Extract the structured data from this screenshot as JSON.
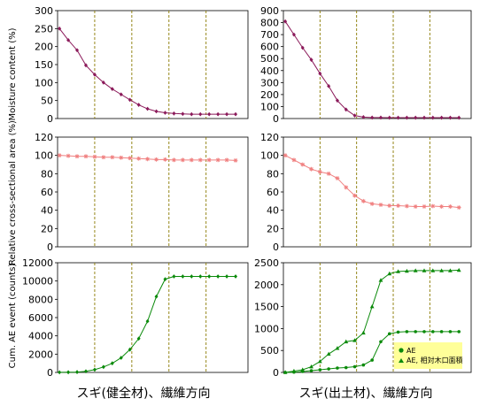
{
  "colors": {
    "moisture": "#8b1a5a",
    "area": "#f08080",
    "ae": "#0a8a0a",
    "grid": "#8a7a00",
    "legend_bg": "#ffff99"
  },
  "captions": [
    "スギ(健全材)、繊維方向",
    "スギ(出土材)、繊維方向"
  ],
  "row_labels": [
    "Moisture content (%)",
    "Relative cross-sectional area (%)",
    "Cum. AE event (counts)"
  ],
  "legend": [
    "AE",
    "AE, 相対木口面積"
  ],
  "chart_data": [
    {
      "panel": "left-top",
      "type": "line",
      "ylabel": "Moisture content (%)",
      "ylim": [
        0,
        300
      ],
      "yticks": [
        "0",
        "50",
        "100",
        "150",
        "200",
        "250",
        "300"
      ],
      "x": [
        0,
        1,
        2,
        3,
        4,
        5,
        6,
        7,
        8,
        9,
        10,
        11,
        12,
        13,
        14,
        15,
        16,
        17,
        18,
        19,
        20
      ],
      "series": [
        {
          "values": [
            250,
            218,
            190,
            148,
            122,
            100,
            82,
            67,
            52,
            38,
            27,
            20,
            16,
            14,
            13,
            12,
            12,
            12,
            12,
            12,
            12
          ]
        }
      ]
    },
    {
      "panel": "right-top",
      "type": "line",
      "ylim": [
        0,
        900
      ],
      "yticks": [
        "0",
        "100",
        "200",
        "300",
        "400",
        "500",
        "600",
        "700",
        "800",
        "900"
      ],
      "x": [
        0,
        1,
        2,
        3,
        4,
        5,
        6,
        7,
        8,
        9,
        10,
        11,
        12,
        13,
        14,
        15,
        16,
        17,
        18,
        19,
        20
      ],
      "series": [
        {
          "values": [
            810,
            700,
            590,
            490,
            375,
            270,
            150,
            75,
            25,
            12,
            8,
            8,
            7,
            7,
            7,
            7,
            7,
            7,
            7,
            7,
            7
          ]
        }
      ]
    },
    {
      "panel": "left-middle",
      "type": "line",
      "ylabel": "Relative cross-sectional area (%)",
      "ylim": [
        0,
        120
      ],
      "yticks": [
        "0",
        "20",
        "40",
        "60",
        "80",
        "100",
        "120"
      ],
      "x": [
        0,
        1,
        2,
        3,
        4,
        5,
        6,
        7,
        8,
        9,
        10,
        11,
        12,
        13,
        14,
        15,
        16,
        17,
        18,
        19,
        20
      ],
      "series": [
        {
          "values": [
            100,
            99.5,
            99,
            99,
            98.5,
            98,
            98,
            97.5,
            97,
            96.5,
            96,
            95.5,
            95.5,
            95,
            95,
            95,
            95,
            95,
            95,
            95,
            94.5
          ]
        }
      ]
    },
    {
      "panel": "right-middle",
      "type": "line",
      "ylim": [
        0,
        120
      ],
      "yticks": [
        "0",
        "20",
        "40",
        "60",
        "80",
        "100",
        "120"
      ],
      "x": [
        0,
        1,
        2,
        3,
        4,
        5,
        6,
        7,
        8,
        9,
        10,
        11,
        12,
        13,
        14,
        15,
        16,
        17,
        18,
        19,
        20
      ],
      "series": [
        {
          "values": [
            100,
            95,
            90,
            85,
            82,
            80,
            75,
            65,
            56,
            50,
            47,
            46,
            45,
            45,
            44.5,
            44,
            44,
            44.5,
            44,
            44,
            43
          ]
        }
      ]
    },
    {
      "panel": "left-bottom",
      "type": "line",
      "ylabel": "Cum. AE event (counts)",
      "ylim": [
        0,
        12000
      ],
      "yticks": [
        "0",
        "2000",
        "4000",
        "6000",
        "8000",
        "10000",
        "12000"
      ],
      "x": [
        0,
        1,
        2,
        3,
        4,
        5,
        6,
        7,
        8,
        9,
        10,
        11,
        12,
        13,
        14,
        15,
        16,
        17,
        18,
        19,
        20
      ],
      "series": [
        {
          "values": [
            10,
            20,
            40,
            120,
            300,
            600,
            1000,
            1600,
            2500,
            3700,
            5600,
            8300,
            10200,
            10500,
            10500,
            10500,
            10500,
            10500,
            10500,
            10500,
            10500
          ]
        }
      ]
    },
    {
      "panel": "right-bottom",
      "type": "line",
      "ylim": [
        0,
        2500
      ],
      "yticks": [
        "0",
        "500",
        "1000",
        "1500",
        "2000",
        "2500"
      ],
      "x": [
        0,
        1,
        2,
        3,
        4,
        5,
        6,
        7,
        8,
        9,
        10,
        11,
        12,
        13,
        14,
        15,
        16,
        17,
        18,
        19,
        20
      ],
      "series": [
        {
          "name": "AE",
          "marker": "circle",
          "values": [
            0,
            5,
            20,
            40,
            60,
            80,
            100,
            110,
            130,
            170,
            280,
            700,
            880,
            920,
            930,
            930,
            930,
            930,
            930,
            930,
            930
          ]
        },
        {
          "name": "AE, 相対木口面積",
          "marker": "triangle",
          "values": [
            0,
            30,
            60,
            130,
            250,
            420,
            550,
            700,
            730,
            900,
            1500,
            2100,
            2250,
            2300,
            2310,
            2320,
            2320,
            2320,
            2320,
            2320,
            2330
          ]
        }
      ]
    }
  ]
}
